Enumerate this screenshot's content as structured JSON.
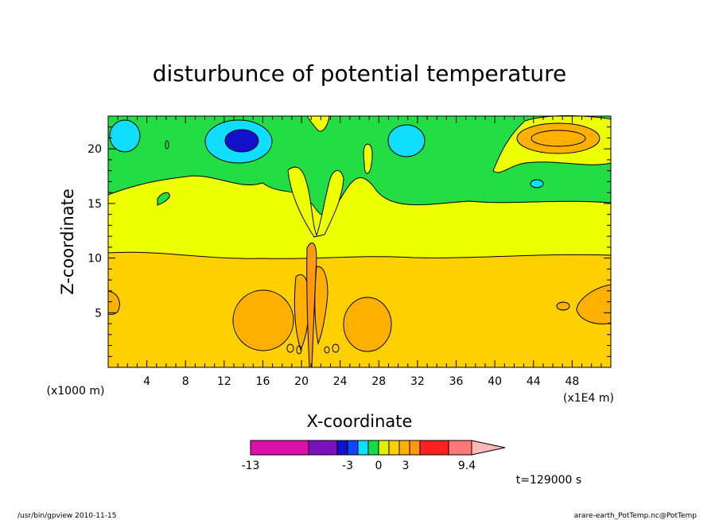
{
  "chart_data": {
    "type": "heatmap",
    "title": "disturbunce of potential temperature",
    "xlabel": "X-coordinate",
    "ylabel": "Z-coordinate",
    "x_unit_label": "(x1000 m)",
    "x_scale_label": "(x1E4 m)",
    "xlim": [
      0,
      52
    ],
    "ylim": [
      0,
      23
    ],
    "x_ticks": [
      4,
      8,
      12,
      16,
      20,
      24,
      28,
      32,
      36,
      40,
      44,
      48
    ],
    "y_ticks": [
      5,
      10,
      15,
      20
    ],
    "time_label": "t=129000 s",
    "colorbar": {
      "levels": [
        "-13",
        "-3",
        "0",
        "3",
        "9.4"
      ],
      "level_values": [
        -13,
        -3,
        0,
        3,
        9.4
      ],
      "colors": [
        "#dd11aa",
        "#7a11bb",
        "#1111cc",
        "#1144ff",
        "#11ddff",
        "#11dd44",
        "#e0f000",
        "#ffd000",
        "#ffb000",
        "#ff9a10",
        "#ff2020",
        "#ff7878",
        "#ffb8b8"
      ]
    },
    "layers": [
      {
        "name": "orange-base",
        "color": "#ffd000",
        "z_range": [
          0,
          10.5
        ]
      },
      {
        "name": "yellow",
        "color": "#eeff00",
        "z_range": [
          10.5,
          16
        ]
      },
      {
        "name": "green",
        "color": "#22dd44",
        "z_range": [
          16,
          23
        ]
      }
    ]
  },
  "footer": {
    "left": "/usr/bin/gpview  2010-11-15",
    "right": "arare-earth_PotTemp.nc@PotTemp"
  }
}
